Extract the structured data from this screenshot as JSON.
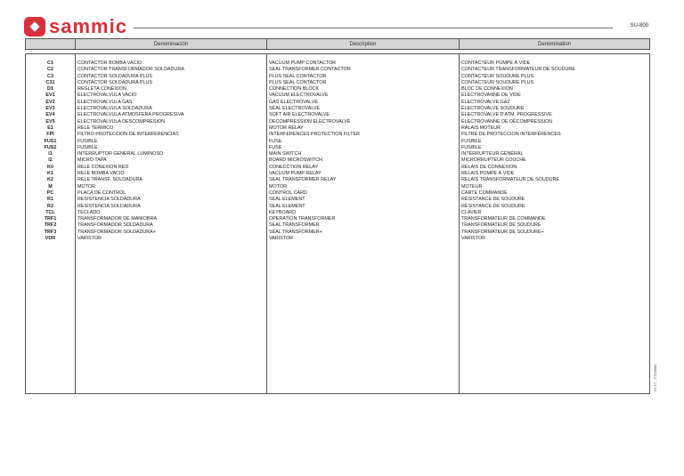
{
  "logo": "sammic",
  "doc_ref": "SU-800",
  "side_ref": "01-17 - 2TO8880",
  "headers": [
    "",
    "Denominación",
    "Description",
    "Denomination"
  ],
  "rows": [
    [
      "C1",
      "CONTACTOR BOMBA VACIO",
      "VACUUM PUMP CONTACTOR",
      "CONTACTEUR POMPE À VIDE"
    ],
    [
      "C2",
      "CONTACTOR TRANSFORMADOR SOLDADURA",
      "SEAL TRANSFORMER CONTACTOR",
      "CONTACTEUR TRANSFORMATEUR DE SOUDURE"
    ],
    [
      "C3",
      "CONTACTOR SOLDADURA PLUS",
      "PLUS SEAL CONTACTOR",
      "CONTACTEUR SOUDURE PLUS"
    ],
    [
      "C31",
      "CONTACTOR SOLDADURA PLUS",
      "PLUS SEAL CONTACTOR",
      "CONTACTEUR SOUDURE PLUS"
    ],
    [
      "D1",
      "REGLETA CONEXION",
      "CONNECTION BLOCK",
      "BLOC DE CONNEXION"
    ],
    [
      "EV1",
      "ELECTROVALVULA VACIO",
      "VACUUM ELECTROVALVE",
      "ÉLECTROVANNE DE VIDE"
    ],
    [
      "EV2",
      "ELECTROVALVULA GAS",
      "GAS ELECTROVALVE",
      "ÉLECTROVALVE GAZ"
    ],
    [
      "EV3",
      "ELECTROVALVULA SOLDADURA",
      "SEAL ELECTROVALVE",
      "ÉLECTROVALVE SOUDURE"
    ],
    [
      "EV4",
      "ELECTROVALVULA ATMOSFERA PROGRESIVA",
      "SOFT AIR ELECTROVALVE",
      "ÉLECTROVALVE D'ATM. PROGRESSIVE"
    ],
    [
      "EV5",
      "ELECTROVALVULA DESCOMPRESION",
      "DECOMPRESSION ELECTROVALVE",
      "ÉLECTROVANNE DE DÉCOMPRESSION"
    ],
    [
      "E1",
      "RELE TERMICO",
      "MOTOR RELAY",
      "RALAIS MOTEUR"
    ],
    [
      "FPI",
      "FILTRO PROTECCION DE INTERFERENCIAS",
      "INTERFERENCES PROTECTION FILTER",
      "FILTRE DE PROTECCION INTERFÉRENCES"
    ],
    [
      "FUS1",
      "FUSIBLE",
      "FUSE",
      "FUSIBLE"
    ],
    [
      "FUS2",
      "FUSIBLE",
      "FUSE",
      "FUSIBLE"
    ],
    [
      "I1",
      "INTERRUPTOR GENERAL LUMINOSO",
      "MAIN SWITCH",
      "INTERRUPTEUR GÉNÉRAL"
    ],
    [
      "I2",
      "MICRO TAPA",
      "BOARD MICROSWITCH",
      "MICRORRUPTEUR COUCHE"
    ],
    [
      "K0",
      "RELE CONEXION RED",
      "CONECCTION RELAY",
      "RELAIS DE CONNEXION"
    ],
    [
      "K1",
      "RELE BOMBA VACIO",
      "VACUUM PUMP RELAY",
      "RELAIS POMPE À VIDE"
    ],
    [
      "K2",
      "RELE TRANSF. SOLDADURA",
      "SEAL TRANSFORMER RELAY",
      "RELAIS TRANSFORMATEUR DE SOUDURE"
    ],
    [
      "M",
      "MOTOR",
      "MOTOR",
      "MOTEUR"
    ],
    [
      "PC",
      "PLACA DE CONTROL",
      "CONTROL CARD",
      "CARTE COMMANDE"
    ],
    [
      "R1",
      "RESISTENCIA SOLDADURA",
      "SEAL ELEMENT",
      "RÉSISTANCE DE SOUDURE"
    ],
    [
      "R2",
      "RESISTENCIA SOLDADURA",
      "SEAL ELEMENT",
      "RÉSISTANCE DE SOUDURE"
    ],
    [
      "TCL",
      "TECLADO",
      "KEYBOARD",
      "CLAVIER"
    ],
    [
      "TRF1",
      "TRANSFORMADOR DE MANIOBRA",
      "OPERATION TRANSFORMER",
      "TRANSFORMATEUR DE COMMANDE"
    ],
    [
      "TRF2",
      "TRANSFORMADOR SOLDADURA",
      "SEAL TRANSFORMER",
      "TRANSFORMATEUR DE SOUDURE"
    ],
    [
      "TRF3",
      "TRANSFORMADOR SOLDADURA+",
      "SEAL TRANSFORMER+",
      "TRANSFORMATEUR DE SOUDURE+"
    ],
    [
      "VDR",
      "VARISTOR",
      "VARISTOR",
      "VARISTOR"
    ]
  ]
}
